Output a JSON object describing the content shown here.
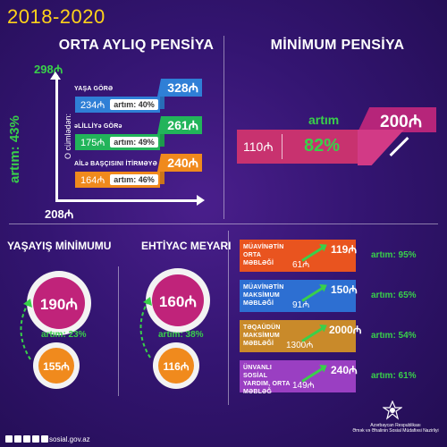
{
  "period": "2018-2020",
  "pension": {
    "title": "ORTA AYLIQ PENSİYA",
    "axis_top": "298₼",
    "axis_bottom": "208₼",
    "growth_label": "artım: 43%",
    "sub_label": "O cümlədən:",
    "rows": [
      {
        "name": "YAŞA GÖRƏ",
        "from": "234₼",
        "to": "328₼",
        "growth": "artım: 40%",
        "color": "#2f7fd6"
      },
      {
        "name": "əLİLLİYə GÖRə",
        "from": "175₼",
        "to": "261₼",
        "growth": "artım: 49%",
        "color": "#22b45a"
      },
      {
        "name": "AİLə BAŞÇISINI İTİRMƏYƏ GÖRə",
        "from": "164₼",
        "to": "240₼",
        "growth": "artım: 46%",
        "color": "#f08a1d"
      }
    ]
  },
  "minimum_pension": {
    "title": "MİNİMUM PENSİYA",
    "from": "110₼",
    "to": "200₼",
    "growth_word": "artım",
    "growth_value": "82%"
  },
  "living_minimum": {
    "title": "YAŞAYIŞ MİNİMUMU",
    "to": "190₼",
    "from": "155₼",
    "growth": "artım: 23%"
  },
  "need_criterion": {
    "title": "EHTİYAC MEYARI",
    "to": "160₼",
    "from": "116₼",
    "growth": "artım: 38%"
  },
  "benefits": [
    {
      "label": "MÜAVİNƏTİN ORTA MƏBLƏĞİ",
      "from": "61₼",
      "to": "119₼",
      "growth": "artım: 95%",
      "color": "#e9541f"
    },
    {
      "label": "MÜAVİNƏTİN MAKSİMUM MƏBLƏĞİ",
      "from": "91₼",
      "to": "150₼",
      "growth": "artım: 65%",
      "color": "#2d6fd2"
    },
    {
      "label": "TƏQAÜDÜN MAKSİMUM MƏBLƏĞİ",
      "from": "1300₼",
      "to": "2000₼",
      "growth": "artım: 54%",
      "color": "#c98a2a"
    },
    {
      "label": "ÜNVANLI SOSİAL YARDIM, ORTA MƏBLƏĞ",
      "from": "149₼",
      "to": "240₼",
      "growth": "artım: 61%",
      "color": "#9a3fc2"
    }
  ],
  "footer": {
    "site": "sosial.gov.az",
    "org_line1": "Azərbaycan Respublikası",
    "org_line2": "Əmək və Əhalinin Sosial Müdafiəsi Nazirliyi"
  }
}
